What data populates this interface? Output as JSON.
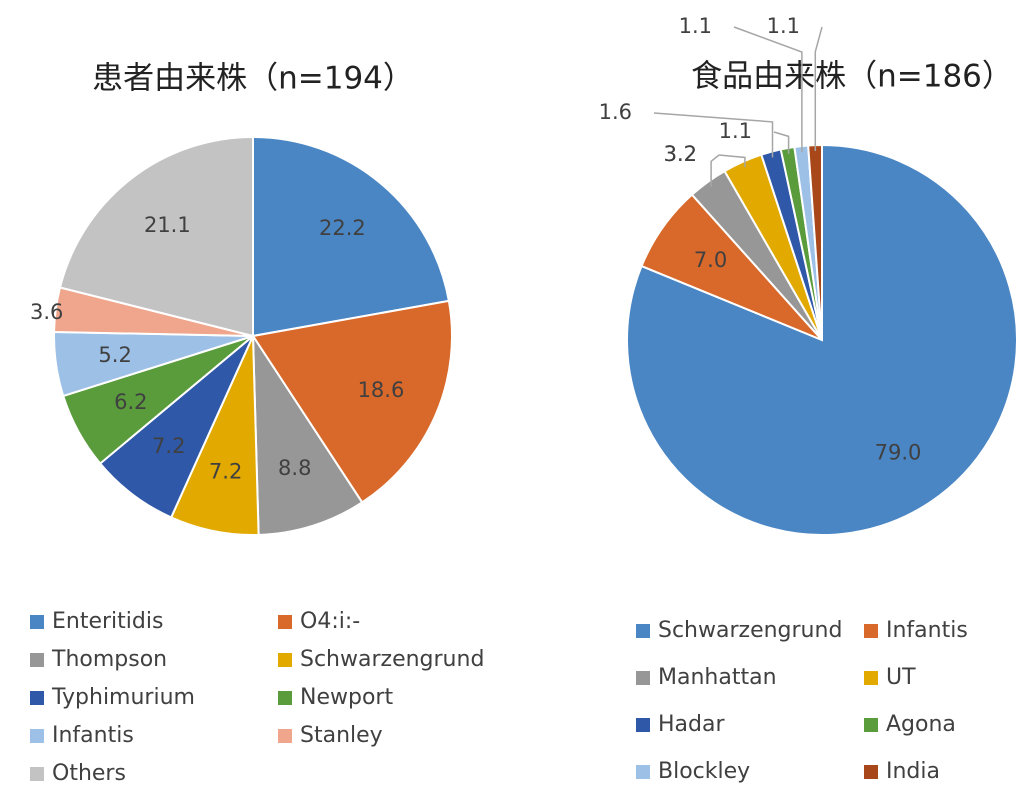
{
  "chart_data": [
    {
      "type": "pie",
      "title": "患者由来株（n=194）",
      "categories": [
        "Enteritidis",
        "O4:i:-",
        "Thompson",
        "Schwarzengrund",
        "Typhimurium",
        "Newport",
        "Infantis",
        "Stanley",
        "Others"
      ],
      "values": [
        22.2,
        18.6,
        8.8,
        7.2,
        7.2,
        6.2,
        5.2,
        3.6,
        21.1
      ],
      "colors": [
        "#4a86c4",
        "#d8692a",
        "#979797",
        "#e2a900",
        "#2f58a8",
        "#5a9b3c",
        "#9dc0e6",
        "#f0a68c",
        "#c3c3c3"
      ]
    },
    {
      "type": "pie",
      "title": "食品由来株（n=186）",
      "categories": [
        "Schwarzengrund",
        "Infantis",
        "Manhattan",
        "UT",
        "Hadar",
        "Agona",
        "Blockley",
        "India"
      ],
      "values": [
        79.0,
        7.0,
        3.2,
        3.2,
        1.6,
        1.1,
        1.1,
        1.1
      ],
      "value_labels": [
        "79.0",
        "7.0",
        "3.2",
        "3.2",
        "1.6",
        "1.1",
        "1.1",
        "1.1"
      ],
      "colors": [
        "#4a86c4",
        "#d8692a",
        "#979797",
        "#e2a900",
        "#2f58a8",
        "#5a9b3c",
        "#9dc0e6",
        "#a8481a"
      ]
    }
  ]
}
